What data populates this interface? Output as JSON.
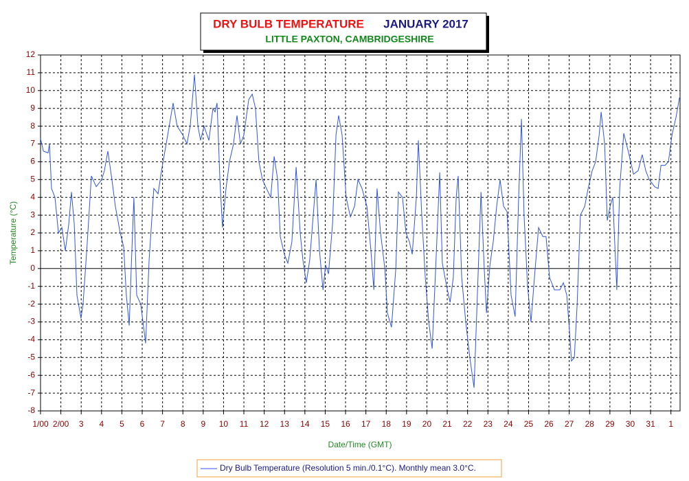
{
  "chart_data": {
    "type": "line",
    "title": "DRY BULB TEMPERATURE",
    "period": "JANUARY 2017",
    "subtitle": "LITTLE PAXTON, CAMBRIDGESHIRE",
    "ylabel": "Temperature (°C)",
    "xlabel": "Date/Time (GMT)",
    "xlim": [
      0,
      31.45
    ],
    "ylim": [
      -8,
      12
    ],
    "yticks": [
      -8,
      -7,
      -6,
      -5,
      -4,
      -3,
      -2,
      -1,
      0,
      1,
      2,
      3,
      4,
      5,
      6,
      7,
      8,
      9,
      10,
      11,
      12
    ],
    "xticks": [
      {
        "value": 0,
        "label": "1/00"
      },
      {
        "value": 1,
        "label": "2/00"
      },
      {
        "value": 2,
        "label": "3"
      },
      {
        "value": 3,
        "label": "4"
      },
      {
        "value": 4,
        "label": "5"
      },
      {
        "value": 5,
        "label": "6"
      },
      {
        "value": 6,
        "label": "7"
      },
      {
        "value": 7,
        "label": "8"
      },
      {
        "value": 8,
        "label": "9"
      },
      {
        "value": 9,
        "label": "10"
      },
      {
        "value": 10,
        "label": "11"
      },
      {
        "value": 11,
        "label": "12"
      },
      {
        "value": 12,
        "label": "13"
      },
      {
        "value": 13,
        "label": "14"
      },
      {
        "value": 14,
        "label": "15"
      },
      {
        "value": 15,
        "label": "16"
      },
      {
        "value": 16,
        "label": "17"
      },
      {
        "value": 17,
        "label": "18"
      },
      {
        "value": 18,
        "label": "19"
      },
      {
        "value": 19,
        "label": "20"
      },
      {
        "value": 20,
        "label": "21"
      },
      {
        "value": 21,
        "label": "22"
      },
      {
        "value": 22,
        "label": "23"
      },
      {
        "value": 23,
        "label": "24"
      },
      {
        "value": 24,
        "label": "25"
      },
      {
        "value": 25,
        "label": "26"
      },
      {
        "value": 26,
        "label": "27"
      },
      {
        "value": 27,
        "label": "28"
      },
      {
        "value": 28,
        "label": "29"
      },
      {
        "value": 29,
        "label": "30"
      },
      {
        "value": 30,
        "label": "31"
      },
      {
        "value": 31,
        "label": "1"
      }
    ],
    "grid": true,
    "series": [
      {
        "name": "Dry Bulb Temperature (Resolution 5 min./0.1°C). Monthly mean 3.0°C.",
        "color": "#2f55e0",
        "x": [
          0,
          0.14,
          0.37,
          0.44,
          0.54,
          0.71,
          0.88,
          1.05,
          1.22,
          1.39,
          1.52,
          1.66,
          1.79,
          1.99,
          2.09,
          2.3,
          2.5,
          2.74,
          3.01,
          3.14,
          3.31,
          3.51,
          3.68,
          3.92,
          4.09,
          4.22,
          4.36,
          4.46,
          4.59,
          4.73,
          4.93,
          5.17,
          5.34,
          5.57,
          5.78,
          5.95,
          6.18,
          6.52,
          6.72,
          7.0,
          7.2,
          7.36,
          7.57,
          7.74,
          7.87,
          8.04,
          8.28,
          8.48,
          8.58,
          8.68,
          8.82,
          8.95,
          9.12,
          9.29,
          9.49,
          9.66,
          9.83,
          10.0,
          10.24,
          10.41,
          10.57,
          10.74,
          10.91,
          11.11,
          11.32,
          11.49,
          11.66,
          11.79,
          11.99,
          12.16,
          12.36,
          12.57,
          12.77,
          12.9,
          13.07,
          13.24,
          13.41,
          13.55,
          13.72,
          13.89,
          14.02,
          14.16,
          14.36,
          14.53,
          14.66,
          14.83,
          15.03,
          15.24,
          15.44,
          15.61,
          15.81,
          16.05,
          16.25,
          16.39,
          16.55,
          16.72,
          16.93,
          17.06,
          17.26,
          17.47,
          17.6,
          17.8,
          17.97,
          18.14,
          18.28,
          18.48,
          18.58,
          18.75,
          18.92,
          19.09,
          19.26,
          19.43,
          19.63,
          19.76,
          19.97,
          20.14,
          20.3,
          20.44,
          20.54,
          20.71,
          20.91,
          21.11,
          21.32,
          21.45,
          21.66,
          21.82,
          21.93,
          22.1,
          22.26,
          22.43,
          22.6,
          22.77,
          22.94,
          23.14,
          23.34,
          23.51,
          23.65,
          23.78,
          23.95,
          24.12,
          24.29,
          24.49,
          24.7,
          24.86,
          25.03,
          25.27,
          25.54,
          25.71,
          25.88,
          26.01,
          26.11,
          26.25,
          26.39,
          26.55,
          26.76,
          26.93,
          27.13,
          27.3,
          27.47,
          27.57,
          27.74,
          27.87,
          28.01,
          28.14,
          28.34,
          28.48,
          28.68,
          28.92,
          29.16,
          29.39,
          29.59,
          29.76,
          29.93,
          30.2,
          30.37,
          30.51,
          30.71,
          30.88,
          31.05,
          31.25,
          31.42
        ],
        "values": [
          7.3,
          6.6,
          6.5,
          7.0,
          4.5,
          4.0,
          2.0,
          2.3,
          1.0,
          2.5,
          4.3,
          2.5,
          -1.5,
          -2.8,
          -2.0,
          1.5,
          5.2,
          4.6,
          5.0,
          5.5,
          6.6,
          5.0,
          3.5,
          2.0,
          1.2,
          -1.5,
          -3.2,
          0.0,
          4.0,
          -1.5,
          -2.0,
          -4.2,
          0.5,
          4.5,
          4.2,
          5.5,
          7.0,
          9.3,
          8.0,
          7.5,
          7.0,
          8.0,
          10.9,
          8.0,
          7.2,
          8.0,
          7.2,
          9.0,
          8.8,
          9.3,
          5.0,
          2.3,
          4.5,
          6.0,
          7.0,
          8.6,
          7.0,
          7.5,
          9.5,
          9.8,
          9.0,
          6.0,
          5.0,
          4.5,
          4.0,
          6.3,
          5.0,
          1.8,
          0.8,
          0.3,
          1.5,
          5.7,
          2.0,
          0.5,
          -0.8,
          0.5,
          3.0,
          5.0,
          1.0,
          -1.2,
          0.2,
          -0.3,
          2.5,
          7.5,
          8.6,
          7.5,
          4.0,
          2.9,
          3.5,
          5.0,
          4.5,
          3.5,
          1.0,
          -1.2,
          4.5,
          2.0,
          0.0,
          -2.5,
          -3.3,
          0.0,
          4.3,
          4.0,
          2.0,
          1.5,
          0.8,
          4.0,
          7.2,
          3.0,
          -0.5,
          -3.0,
          -4.5,
          0.0,
          5.4,
          0.3,
          -1.0,
          -1.9,
          -0.5,
          4.0,
          5.2,
          -0.5,
          -3.0,
          -5.0,
          -6.7,
          -2.5,
          4.3,
          0.0,
          -2.5,
          0.2,
          1.5,
          3.5,
          5.0,
          3.5,
          3.2,
          -1.5,
          -2.7,
          4.0,
          8.4,
          3.0,
          -1.0,
          -3.0,
          -0.5,
          2.3,
          1.8,
          1.8,
          -0.5,
          -1.2,
          -1.2,
          -0.8,
          -1.5,
          -3.5,
          -5.2,
          -5.0,
          -2.0,
          3.0,
          3.5,
          4.5,
          5.5,
          6.0,
          7.5,
          8.8,
          7.0,
          2.7,
          3.5,
          4.0,
          -1.2,
          4.5,
          7.6,
          6.5,
          5.3,
          5.5,
          6.4,
          5.5,
          5.0,
          4.6,
          4.5,
          5.8,
          5.8,
          6.0,
          7.5,
          8.5,
          9.6
        ]
      }
    ]
  }
}
